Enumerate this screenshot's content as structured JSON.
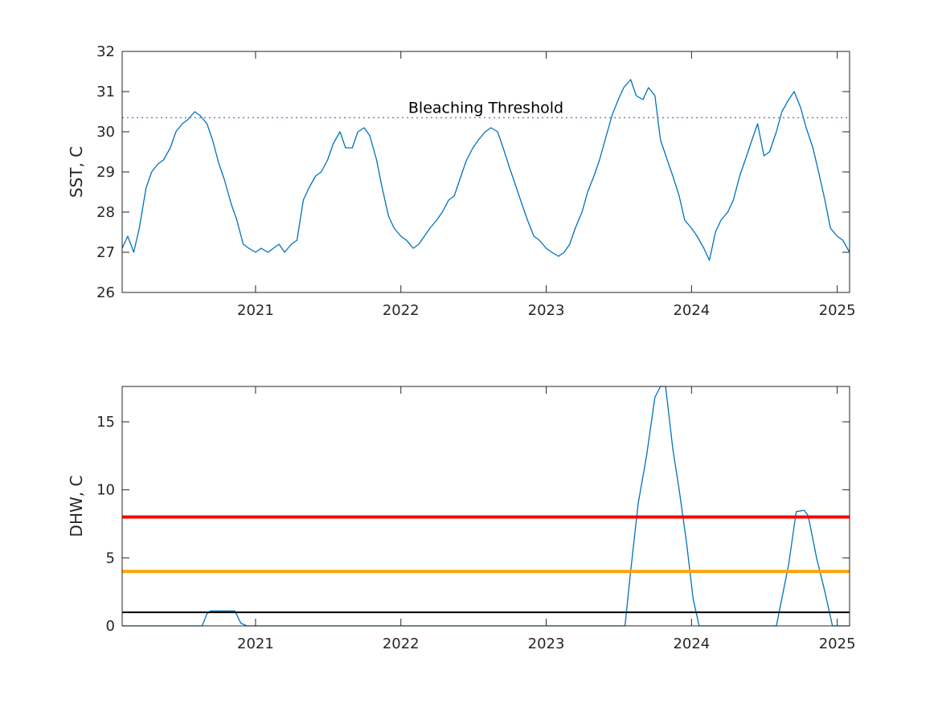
{
  "chart_data": [
    {
      "type": "line",
      "ylabel": "SST, C",
      "xlim": [
        "2020-02-01",
        "2025-02-01"
      ],
      "ylim": [
        26,
        32
      ],
      "yticks": [
        26,
        27,
        28,
        29,
        30,
        31,
        32
      ],
      "xticks": [
        {
          "date": "2021-01-01",
          "label": "2021"
        },
        {
          "date": "2022-01-01",
          "label": "2022"
        },
        {
          "date": "2023-01-01",
          "label": "2023"
        },
        {
          "date": "2024-01-01",
          "label": "2024"
        },
        {
          "date": "2025-01-01",
          "label": "2025"
        }
      ],
      "grid": false,
      "series": [
        {
          "color": "#0072BD",
          "points": [
            [
              "2020-02-01",
              27.1
            ],
            [
              "2020-02-15",
              27.4
            ],
            [
              "2020-03-01",
              27.0
            ],
            [
              "2020-03-15",
              27.6
            ],
            [
              "2020-04-01",
              28.6
            ],
            [
              "2020-04-15",
              29.0
            ],
            [
              "2020-05-01",
              29.2
            ],
            [
              "2020-05-15",
              29.3
            ],
            [
              "2020-06-01",
              29.6
            ],
            [
              "2020-06-15",
              30.0
            ],
            [
              "2020-07-01",
              30.2
            ],
            [
              "2020-07-15",
              30.3
            ],
            [
              "2020-08-01",
              30.5
            ],
            [
              "2020-08-15",
              30.4
            ],
            [
              "2020-09-01",
              30.2
            ],
            [
              "2020-09-15",
              29.8
            ],
            [
              "2020-10-01",
              29.2
            ],
            [
              "2020-10-15",
              28.8
            ],
            [
              "2020-11-01",
              28.2
            ],
            [
              "2020-11-15",
              27.8
            ],
            [
              "2020-12-01",
              27.2
            ],
            [
              "2020-12-15",
              27.1
            ],
            [
              "2021-01-01",
              27.0
            ],
            [
              "2021-01-15",
              27.1
            ],
            [
              "2021-02-01",
              27.0
            ],
            [
              "2021-02-15",
              27.1
            ],
            [
              "2021-03-01",
              27.2
            ],
            [
              "2021-03-15",
              27.0
            ],
            [
              "2021-04-01",
              27.2
            ],
            [
              "2021-04-15",
              27.3
            ],
            [
              "2021-05-01",
              28.3
            ],
            [
              "2021-05-15",
              28.6
            ],
            [
              "2021-06-01",
              28.9
            ],
            [
              "2021-06-15",
              29.0
            ],
            [
              "2021-07-01",
              29.3
            ],
            [
              "2021-07-15",
              29.7
            ],
            [
              "2021-08-01",
              30.0
            ],
            [
              "2021-08-15",
              29.6
            ],
            [
              "2021-09-01",
              29.6
            ],
            [
              "2021-09-15",
              30.0
            ],
            [
              "2021-10-01",
              30.1
            ],
            [
              "2021-10-15",
              29.9
            ],
            [
              "2021-11-01",
              29.3
            ],
            [
              "2021-11-15",
              28.6
            ],
            [
              "2021-12-01",
              27.9
            ],
            [
              "2021-12-15",
              27.6
            ],
            [
              "2022-01-01",
              27.4
            ],
            [
              "2022-01-15",
              27.3
            ],
            [
              "2022-02-01",
              27.1
            ],
            [
              "2022-02-15",
              27.2
            ],
            [
              "2022-03-01",
              27.4
            ],
            [
              "2022-03-15",
              27.6
            ],
            [
              "2022-04-01",
              27.8
            ],
            [
              "2022-04-15",
              28.0
            ],
            [
              "2022-05-01",
              28.3
            ],
            [
              "2022-05-15",
              28.4
            ],
            [
              "2022-06-01",
              28.9
            ],
            [
              "2022-06-15",
              29.3
            ],
            [
              "2022-07-01",
              29.6
            ],
            [
              "2022-07-15",
              29.8
            ],
            [
              "2022-08-01",
              30.0
            ],
            [
              "2022-08-15",
              30.1
            ],
            [
              "2022-09-01",
              30.0
            ],
            [
              "2022-09-15",
              29.6
            ],
            [
              "2022-10-01",
              29.1
            ],
            [
              "2022-10-15",
              28.7
            ],
            [
              "2022-11-01",
              28.2
            ],
            [
              "2022-11-15",
              27.8
            ],
            [
              "2022-12-01",
              27.4
            ],
            [
              "2022-12-15",
              27.3
            ],
            [
              "2023-01-01",
              27.1
            ],
            [
              "2023-01-15",
              27.0
            ],
            [
              "2023-02-01",
              26.9
            ],
            [
              "2023-02-15",
              27.0
            ],
            [
              "2023-03-01",
              27.2
            ],
            [
              "2023-03-15",
              27.6
            ],
            [
              "2023-04-01",
              28.0
            ],
            [
              "2023-04-15",
              28.5
            ],
            [
              "2023-05-01",
              28.9
            ],
            [
              "2023-05-15",
              29.3
            ],
            [
              "2023-06-01",
              29.9
            ],
            [
              "2023-06-15",
              30.4
            ],
            [
              "2023-07-01",
              30.8
            ],
            [
              "2023-07-15",
              31.1
            ],
            [
              "2023-08-01",
              31.3
            ],
            [
              "2023-08-15",
              30.9
            ],
            [
              "2023-09-01",
              30.8
            ],
            [
              "2023-09-15",
              31.1
            ],
            [
              "2023-10-01",
              30.9
            ],
            [
              "2023-10-15",
              29.8
            ],
            [
              "2023-11-01",
              29.3
            ],
            [
              "2023-11-15",
              28.9
            ],
            [
              "2023-12-01",
              28.4
            ],
            [
              "2023-12-15",
              27.8
            ],
            [
              "2024-01-01",
              27.6
            ],
            [
              "2024-01-15",
              27.4
            ],
            [
              "2024-02-01",
              27.1
            ],
            [
              "2024-02-15",
              26.8
            ],
            [
              "2024-03-01",
              27.5
            ],
            [
              "2024-03-15",
              27.8
            ],
            [
              "2024-04-01",
              28.0
            ],
            [
              "2024-04-15",
              28.3
            ],
            [
              "2024-05-01",
              28.9
            ],
            [
              "2024-05-15",
              29.3
            ],
            [
              "2024-06-01",
              29.8
            ],
            [
              "2024-06-15",
              30.2
            ],
            [
              "2024-07-01",
              29.4
            ],
            [
              "2024-07-15",
              29.5
            ],
            [
              "2024-08-01",
              30.0
            ],
            [
              "2024-08-15",
              30.5
            ],
            [
              "2024-09-01",
              30.8
            ],
            [
              "2024-09-15",
              31.0
            ],
            [
              "2024-10-01",
              30.6
            ],
            [
              "2024-10-15",
              30.1
            ],
            [
              "2024-11-01",
              29.6
            ],
            [
              "2024-11-15",
              29.0
            ],
            [
              "2024-12-01",
              28.3
            ],
            [
              "2024-12-15",
              27.6
            ],
            [
              "2025-01-01",
              27.4
            ],
            [
              "2025-01-15",
              27.3
            ],
            [
              "2025-02-01",
              27.0
            ]
          ]
        }
      ],
      "reference_lines": [
        {
          "y": 30.35,
          "style": "dotted",
          "color": "#7E7ECC",
          "label": "Bleaching Threshold"
        }
      ]
    },
    {
      "type": "line",
      "ylabel": "DHW, C",
      "xlim": [
        "2020-02-01",
        "2025-02-01"
      ],
      "ylim": [
        0,
        17.6
      ],
      "yticks": [
        0,
        5,
        10,
        15
      ],
      "xticks": [
        {
          "date": "2021-01-01",
          "label": "2021"
        },
        {
          "date": "2022-01-01",
          "label": "2022"
        },
        {
          "date": "2023-01-01",
          "label": "2023"
        },
        {
          "date": "2024-01-01",
          "label": "2024"
        },
        {
          "date": "2025-01-01",
          "label": "2025"
        }
      ],
      "grid": false,
      "series": [
        {
          "color": "#0072BD",
          "points": [
            [
              "2020-02-01",
              0
            ],
            [
              "2020-08-20",
              0
            ],
            [
              "2020-09-01",
              0.9
            ],
            [
              "2020-09-10",
              1.1
            ],
            [
              "2020-11-10",
              1.1
            ],
            [
              "2020-11-25",
              0.2
            ],
            [
              "2020-12-10",
              0
            ],
            [
              "2023-07-18",
              0
            ],
            [
              "2023-08-01",
              4
            ],
            [
              "2023-08-20",
              9
            ],
            [
              "2023-09-10",
              12.5
            ],
            [
              "2023-10-01",
              16.8
            ],
            [
              "2023-10-15",
              17.6
            ],
            [
              "2023-10-28",
              17.6
            ],
            [
              "2023-11-15",
              13
            ],
            [
              "2023-12-01",
              10
            ],
            [
              "2023-12-20",
              6
            ],
            [
              "2024-01-05",
              2
            ],
            [
              "2024-01-20",
              0
            ],
            [
              "2024-08-01",
              0
            ],
            [
              "2024-09-01",
              4.5
            ],
            [
              "2024-09-20",
              8.4
            ],
            [
              "2024-10-10",
              8.5
            ],
            [
              "2024-10-20",
              8.1
            ],
            [
              "2024-11-10",
              5
            ],
            [
              "2024-12-01",
              2.5
            ],
            [
              "2024-12-20",
              0
            ],
            [
              "2025-02-01",
              0
            ]
          ]
        }
      ],
      "reference_lines": [
        {
          "y": 8,
          "color": "#FF0000"
        },
        {
          "y": 4,
          "color": "#FFA500"
        },
        {
          "y": 1,
          "color": "#000000"
        }
      ]
    }
  ]
}
